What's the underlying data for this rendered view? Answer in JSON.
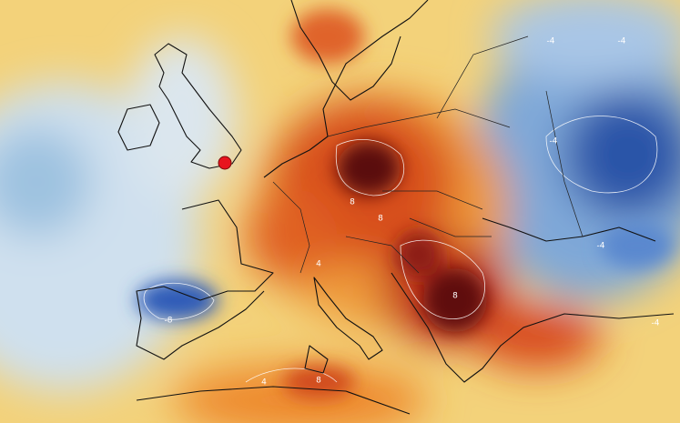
{
  "contour_labels": [
    -4,
    -4,
    -4,
    -4,
    -8,
    8,
    8,
    4,
    8,
    4,
    8,
    -4
  ]
}
